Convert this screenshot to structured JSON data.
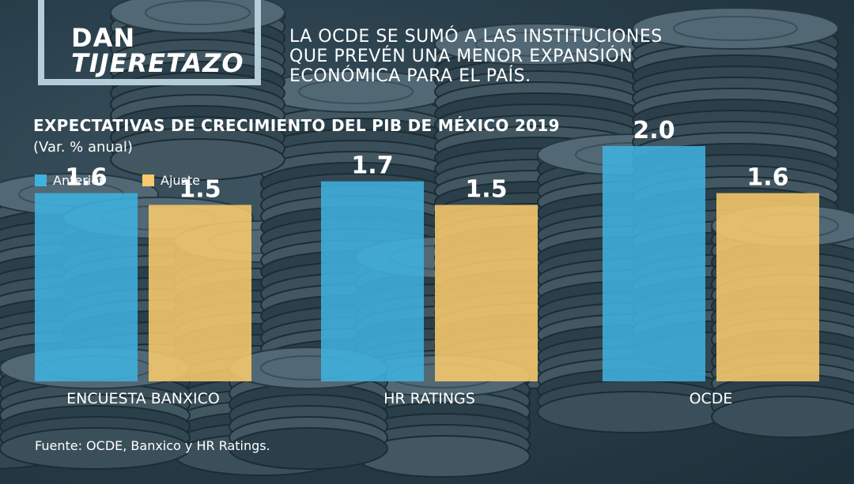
{
  "header": {
    "title_line1": "DAN",
    "title_line2": "TIJERETAZO",
    "subtitle": "LA OCDE SE SUMÓ A LAS INSTITUCIONES QUE PREVÉN UNA MENOR EXPANSIÓN ECONÓMICA PARA EL PAÍS."
  },
  "source": "Fuente: OCDE, Banxico y HR Ratings.",
  "colors": {
    "anterior": "#3fb1de",
    "ajuste": "#f7c96b"
  },
  "chart_data": {
    "type": "bar",
    "title": "EXPECTATIVAS DE CRECIMIENTO DEL PIB DE MÉXICO 2019",
    "subtitle": "(Var. % anual)",
    "categories": [
      "ENCUESTA BANXICO",
      "HR RATINGS",
      "OCDE"
    ],
    "series": [
      {
        "name": "Anterior",
        "values": [
          1.6,
          1.7,
          2.0
        ],
        "labels": [
          "1.6",
          "1.7",
          "2.0"
        ]
      },
      {
        "name": "Ajuste",
        "values": [
          1.5,
          1.5,
          1.6
        ],
        "labels": [
          "1.5",
          "1.5",
          "1.6"
        ]
      }
    ],
    "legend": "top-left",
    "grid": false
  }
}
